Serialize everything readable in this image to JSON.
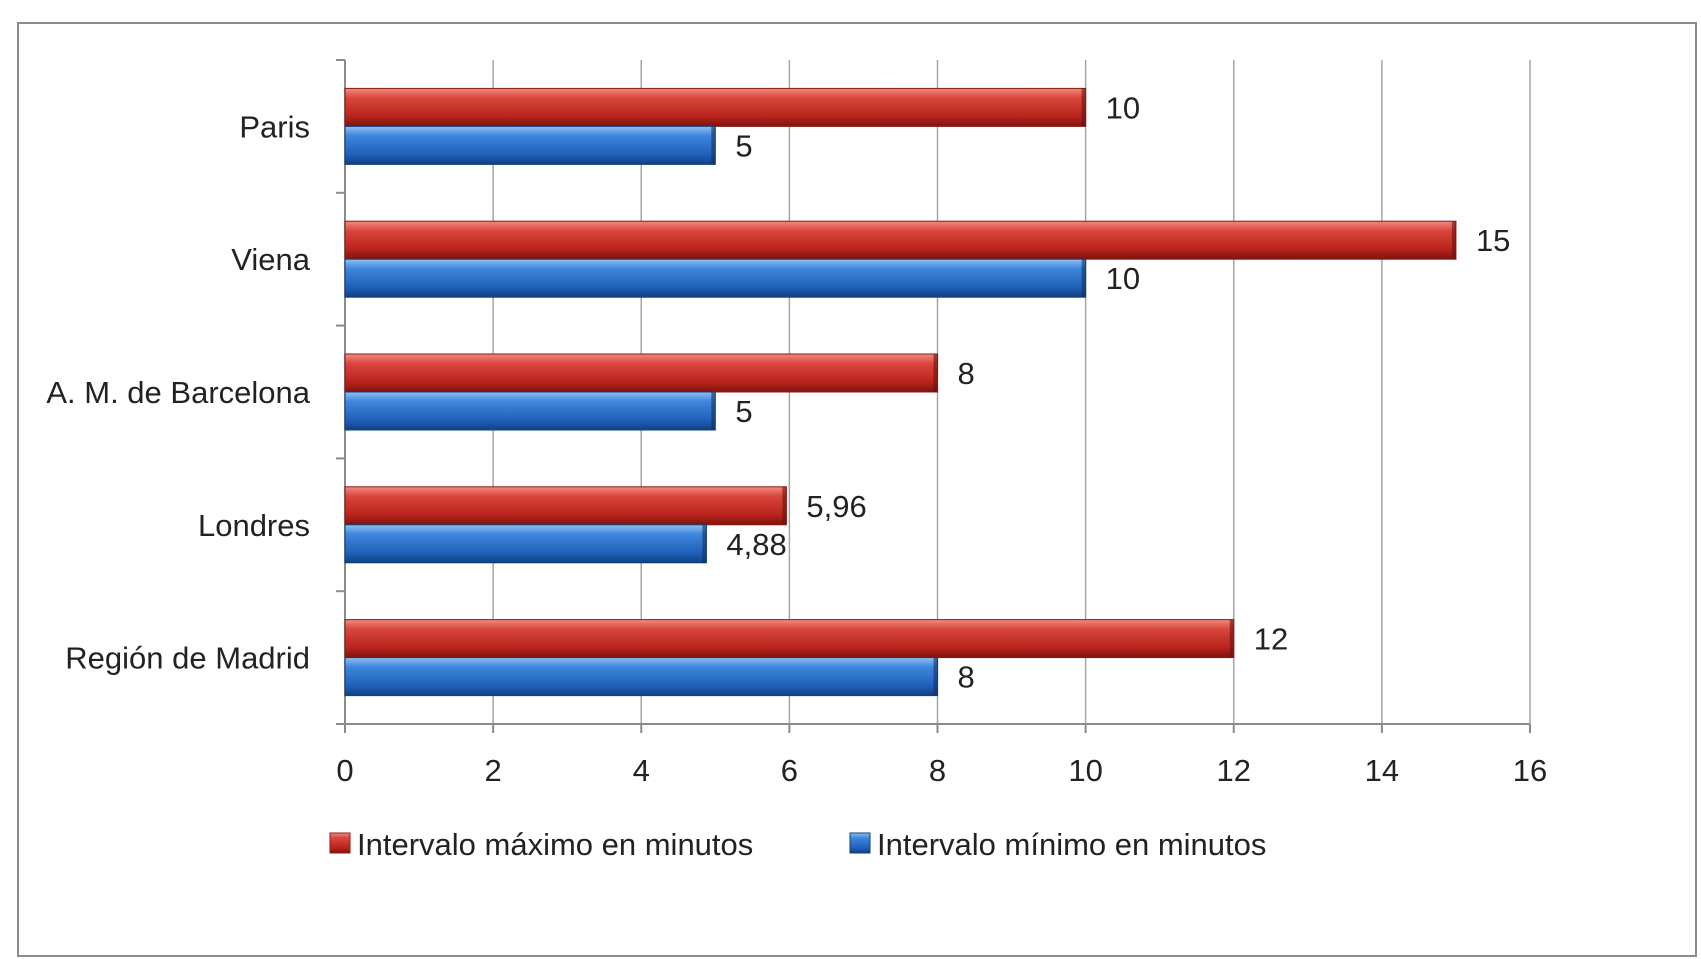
{
  "chart_data": {
    "type": "bar",
    "orientation": "horizontal",
    "categories": [
      "Paris",
      "Viena",
      "A. M. de Barcelona",
      "Londres",
      "Región de Madrid"
    ],
    "series": [
      {
        "name": "Intervalo máximo en minutos",
        "color": "#c0392b",
        "values": [
          10,
          15,
          8,
          5.96,
          12
        ],
        "labels": [
          "10",
          "15",
          "8",
          "5,96",
          "12"
        ]
      },
      {
        "name": "Intervalo mínimo en minutos",
        "color": "#2e6fc0",
        "values": [
          5,
          10,
          5,
          4.88,
          8
        ],
        "labels": [
          "5",
          "10",
          "5",
          "4,88",
          "8"
        ]
      }
    ],
    "xlim": [
      0,
      16
    ],
    "xticks": [
      "0",
      "2",
      "4",
      "6",
      "8",
      "10",
      "12",
      "14",
      "16"
    ],
    "grid": "vertical",
    "legend_position": "bottom"
  }
}
